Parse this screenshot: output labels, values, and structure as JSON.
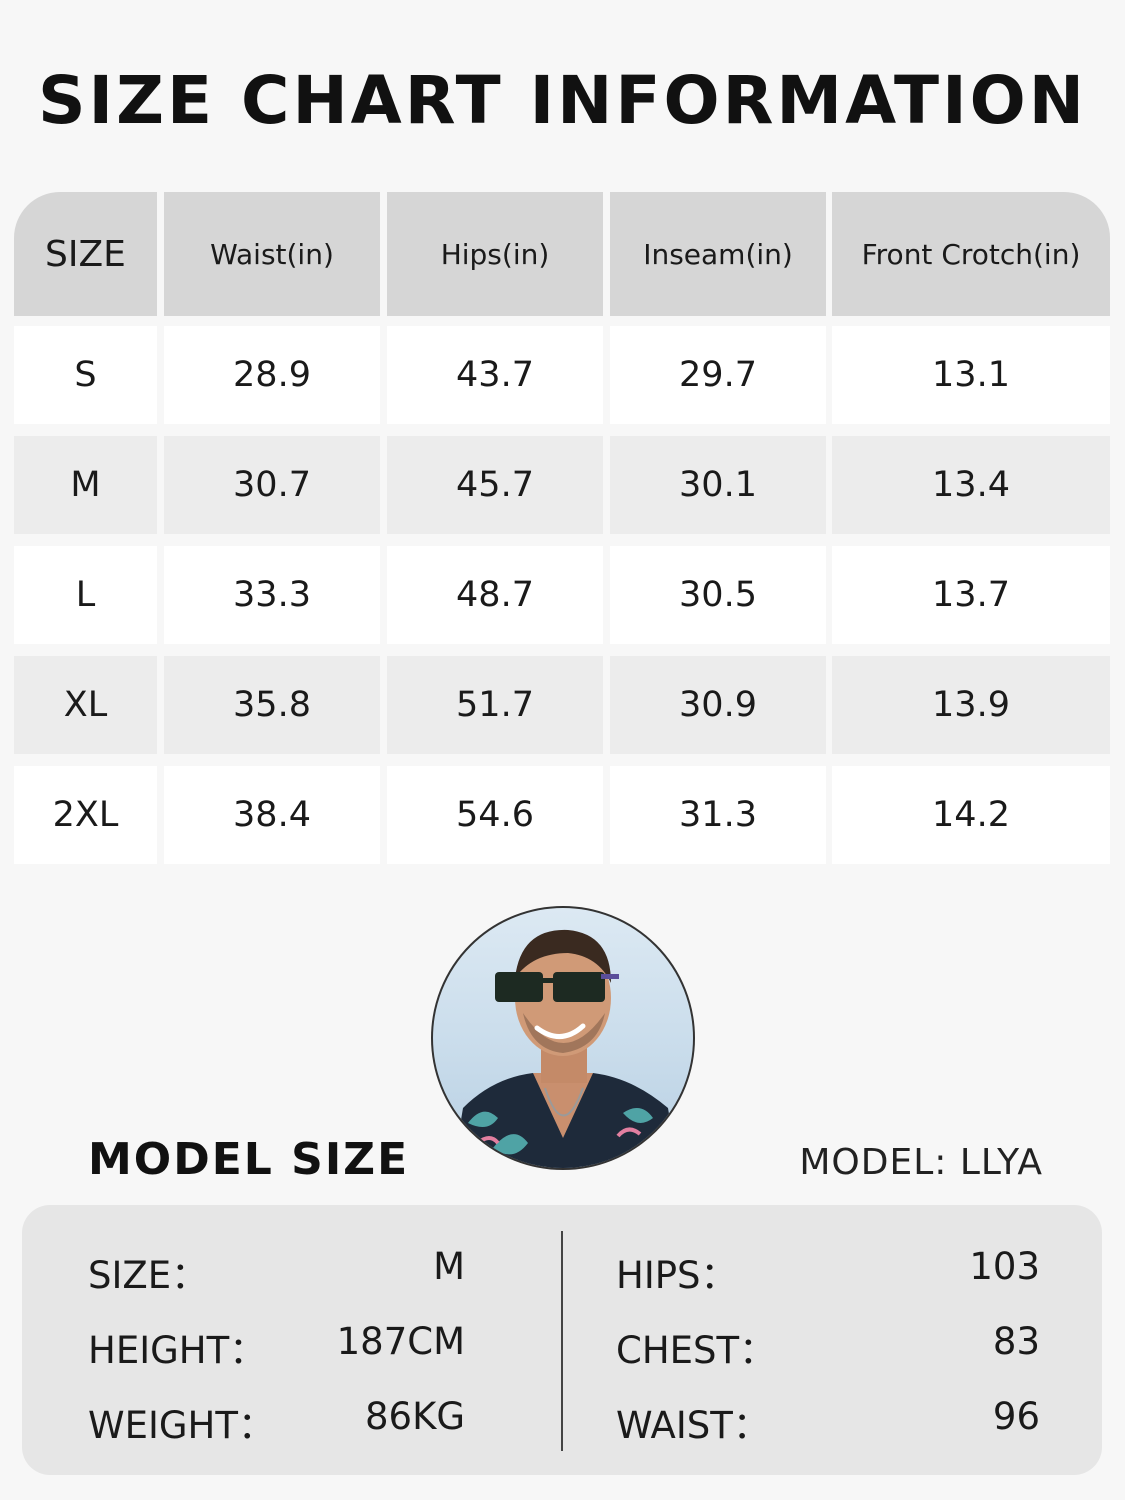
{
  "title": "SIZE CHART INFORMATION",
  "table": {
    "headers": [
      "SIZE",
      "Waist(in)",
      "Hips(in)",
      "Inseam(in)",
      "Front Crotch(in)"
    ],
    "rows": [
      [
        "S",
        "28.9",
        "43.7",
        "29.7",
        "13.1"
      ],
      [
        "M",
        "30.7",
        "45.7",
        "30.1",
        "13.4"
      ],
      [
        "L",
        "33.3",
        "48.7",
        "30.5",
        "13.7"
      ],
      [
        "XL",
        "35.8",
        "51.7",
        "30.9",
        "13.9"
      ],
      [
        "2XL",
        "38.4",
        "54.6",
        "31.3",
        "14.2"
      ]
    ]
  },
  "model": {
    "heading": "MODEL SIZE",
    "name": "MODEL: LLYA",
    "left": [
      {
        "label": "SIZE：",
        "value": "M"
      },
      {
        "label": "HEIGHT：",
        "value": "187CM"
      },
      {
        "label": "WEIGHT：",
        "value": "86KG"
      }
    ],
    "right": [
      {
        "label": "HIPS：",
        "value": "103"
      },
      {
        "label": "CHEST：",
        "value": "83"
      },
      {
        "label": "WAIST：",
        "value": "96"
      }
    ]
  },
  "colors": {
    "header_bg": "#d6d6d6",
    "row_light": "#ffffff",
    "row_gray": "#ececec",
    "panel_bg": "#e6e6e6"
  }
}
